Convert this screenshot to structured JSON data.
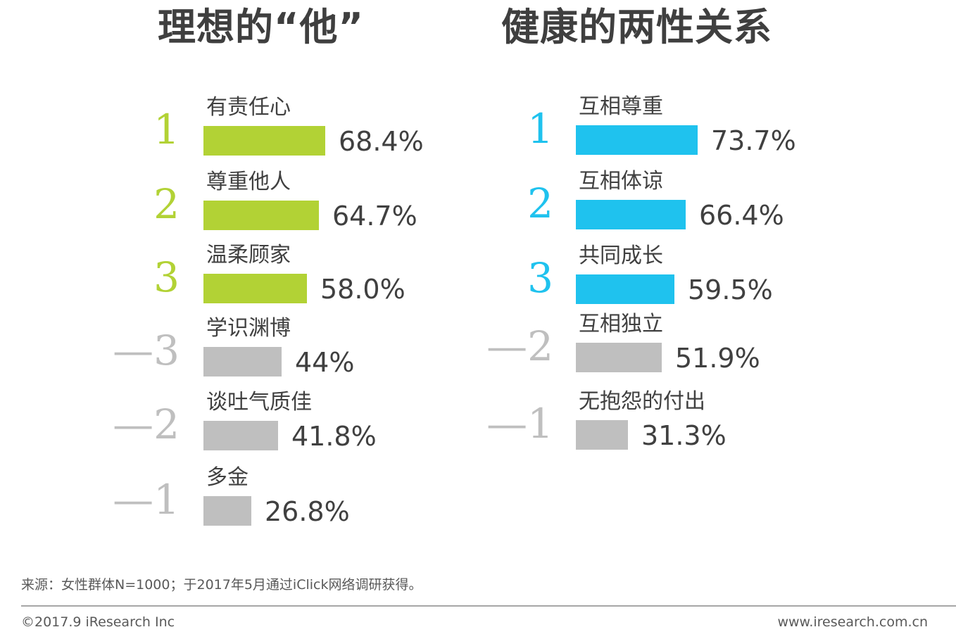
{
  "chart_data": [
    {
      "type": "bar",
      "title": "理想的“他”",
      "unit": "%",
      "categories": [
        "有责任心",
        "尊重他人",
        "温柔顾家",
        "学识渊博",
        "谈吐气质佳",
        "多金"
      ],
      "values": [
        68.4,
        64.7,
        58.0,
        44,
        41.8,
        26.8
      ],
      "value_labels": [
        "68.4%",
        "64.7%",
        "58.0%",
        "44%",
        "41.8%",
        "26.8%"
      ],
      "ranks": [
        "1",
        "2",
        "3",
        "—3",
        "—2",
        "—1"
      ],
      "highlight_color": "#b2d235",
      "other_color": "#bfbfbf"
    },
    {
      "type": "bar",
      "title": "健康的两性关系",
      "unit": "%",
      "categories": [
        "互相尊重",
        "互相体谅",
        "共同成长",
        "互相独立",
        "无抱怨的付出"
      ],
      "values": [
        73.7,
        66.4,
        59.5,
        51.9,
        31.3
      ],
      "value_labels": [
        "73.7%",
        "66.4%",
        "59.5%",
        "51.9%",
        "31.3%"
      ],
      "ranks": [
        "1",
        "2",
        "3",
        "—2",
        "—1"
      ],
      "highlight_color": "#1fc2ee",
      "other_color": "#bfbfbf"
    }
  ],
  "footer": {
    "source": "来源：女性群体N=1000；于2017年5月通过iClick网络调研获得。",
    "copyright": "©2017.9 iResearch Inc",
    "website": "www.iresearch.com.cn"
  }
}
